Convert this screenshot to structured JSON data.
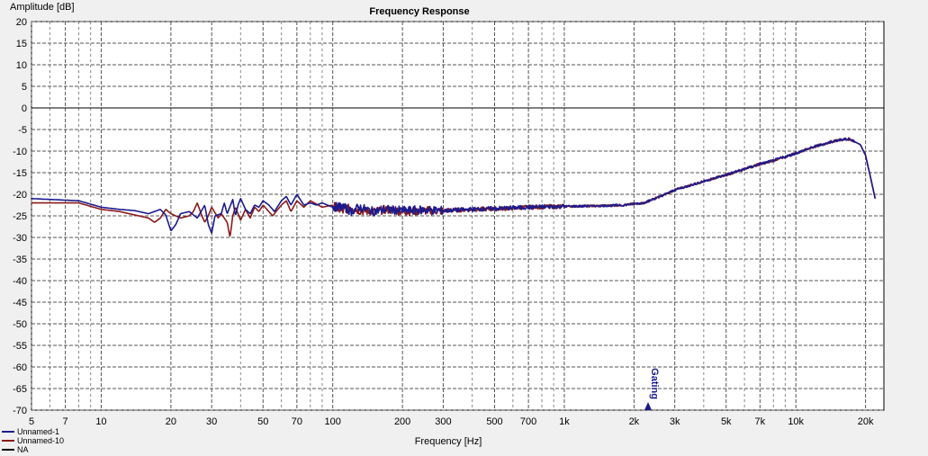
{
  "chart_data": {
    "type": "line",
    "title": "Frequency Response",
    "ylabel": "Amplitude [dB]",
    "xlabel": "Frequency [Hz]",
    "x_scale": "log",
    "xlim": [
      5,
      24000
    ],
    "ylim": [
      -70,
      20
    ],
    "grid": true,
    "reference_line_y": 0,
    "x_tick_values": [
      5,
      7,
      10,
      20,
      30,
      50,
      70,
      100,
      200,
      300,
      500,
      700,
      1000,
      2000,
      3000,
      5000,
      7000,
      10000,
      20000
    ],
    "x_tick_labels": [
      "5",
      "7",
      "10",
      "20",
      "30",
      "50",
      "70",
      "100",
      "200",
      "300",
      "500",
      "700",
      "1k",
      "2k",
      "3k",
      "5k",
      "7k",
      "10k",
      "20k"
    ],
    "y_ticks": [
      20,
      15,
      10,
      5,
      0,
      -5,
      -10,
      -15,
      -20,
      -25,
      -30,
      -35,
      -40,
      -45,
      -50,
      -55,
      -60,
      -65,
      -70
    ],
    "marker": {
      "label": "Gating",
      "x": 2300,
      "color": "#1a1a8c"
    },
    "legend_position": "bottom-left",
    "series": [
      {
        "name": "Unnamed-1",
        "color": "#1b1b8f",
        "x": [
          5,
          8,
          10,
          12,
          14,
          16,
          18,
          19,
          20,
          21,
          22,
          24,
          26,
          27,
          28,
          29,
          30,
          31,
          33,
          34,
          35,
          37,
          38,
          39,
          40,
          42,
          44,
          46,
          48,
          50,
          53,
          56,
          60,
          63,
          66,
          70,
          75,
          80,
          85,
          90,
          100,
          110,
          120,
          130,
          150,
          170,
          200,
          250,
          300,
          400,
          500,
          700,
          1000,
          1400,
          1800,
          2200,
          2600,
          3000,
          4000,
          5000,
          7000,
          8000,
          10000,
          12000,
          15000,
          17000,
          19000,
          20000,
          21000,
          22000
        ],
        "y": [
          -21,
          -21.5,
          -23,
          -23.5,
          -23.8,
          -24.5,
          -23.5,
          -24.8,
          -28.5,
          -27,
          -24.5,
          -24,
          -25.5,
          -24,
          -22.5,
          -27,
          -29,
          -25,
          -24.5,
          -22,
          -24.5,
          -21.2,
          -25,
          -22.5,
          -21,
          -23.5,
          -24.5,
          -22.5,
          -23,
          -21.5,
          -22.5,
          -24,
          -21.5,
          -20.5,
          -22.5,
          -20,
          -22.5,
          -22,
          -22.5,
          -22,
          -23,
          -22.8,
          -24,
          -23,
          -24,
          -23.5,
          -23.8,
          -23.6,
          -23.8,
          -23.5,
          -23.3,
          -23,
          -22.8,
          -22.7,
          -22.5,
          -22,
          -20.5,
          -19,
          -17,
          -15.5,
          -13,
          -12.2,
          -10.5,
          -9,
          -7.5,
          -7.2,
          -8.5,
          -11,
          -16,
          -21
        ]
      },
      {
        "name": "Unnamed-10",
        "color": "#8b1a1a",
        "x": [
          5,
          8,
          10,
          12,
          14,
          16,
          17,
          18,
          19,
          20,
          22,
          24,
          25,
          26,
          27,
          28,
          29,
          30,
          32,
          33,
          35,
          36,
          37,
          38,
          40,
          42,
          44,
          46,
          48,
          50,
          55,
          60,
          63,
          66,
          70,
          75,
          80,
          90,
          100,
          110,
          120,
          130,
          150,
          170,
          200,
          250,
          300,
          400,
          500,
          700,
          1000,
          1400,
          1800,
          2200,
          2600,
          3000,
          4000,
          5000,
          7000,
          8000,
          10000,
          12000,
          15000,
          17000,
          19000,
          20000,
          21000,
          22000
        ],
        "y": [
          -22,
          -22,
          -23.5,
          -24,
          -24.8,
          -25.5,
          -26.5,
          -25.5,
          -23.5,
          -24.5,
          -25.5,
          -25,
          -24,
          -22,
          -24.5,
          -26.5,
          -25,
          -23,
          -25.5,
          -24.5,
          -26.5,
          -30,
          -25,
          -23,
          -26,
          -23.5,
          -25.5,
          -23,
          -24,
          -22.5,
          -25,
          -22.5,
          -21.5,
          -24,
          -21.5,
          -23,
          -21.5,
          -23,
          -22.5,
          -24,
          -23,
          -23.8,
          -24,
          -23.5,
          -24,
          -23.8,
          -23.8,
          -23.5,
          -23.4,
          -23,
          -22.8,
          -22.7,
          -22.5,
          -22,
          -20.5,
          -19,
          -17,
          -15.5,
          -13,
          -12.2,
          -10.5,
          -9,
          -7.5,
          -7.2,
          -8.5,
          -11,
          -16,
          -21
        ]
      },
      {
        "name": "NA",
        "color": "#000000",
        "x": [],
        "y": []
      }
    ]
  }
}
